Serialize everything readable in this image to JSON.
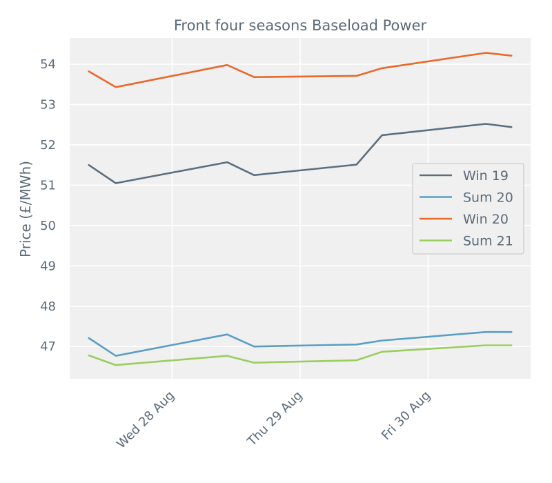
{
  "chart_data": {
    "type": "line",
    "title": "Front four seasons Baseload Power",
    "xlabel": "",
    "ylabel": "Price (£/MWh)",
    "x_ticks": [
      "Wed 28 Aug",
      "Thu 29 Aug",
      "Fri 30 Aug"
    ],
    "y_ticks": [
      "47",
      "48",
      "49",
      "50",
      "51",
      "52",
      "53",
      "54"
    ],
    "ylim": [
      46.2,
      54.65
    ],
    "x_range": [
      27.2,
      30.8
    ],
    "grid": true,
    "legend_position": "center-right",
    "x": [
      27.35,
      27.56,
      28.43,
      28.64,
      29.44,
      29.64,
      30.45,
      30.65
    ],
    "series": [
      {
        "name": "Win 19",
        "color": "#5b6f7f",
        "values": [
          51.5,
          51.05,
          51.57,
          51.25,
          51.51,
          52.24,
          52.52,
          52.44
        ]
      },
      {
        "name": "Sum 20",
        "color": "#5b9ec4",
        "values": [
          47.21,
          46.77,
          47.3,
          47.0,
          47.05,
          47.15,
          47.36,
          47.36
        ]
      },
      {
        "name": "Win 20",
        "color": "#e8692a",
        "values": [
          53.82,
          53.43,
          53.98,
          53.68,
          53.71,
          53.9,
          54.28,
          54.21
        ]
      },
      {
        "name": "Sum 21",
        "color": "#9acd5f",
        "values": [
          46.78,
          46.54,
          46.77,
          46.6,
          46.66,
          46.87,
          47.03,
          47.03
        ]
      }
    ]
  }
}
